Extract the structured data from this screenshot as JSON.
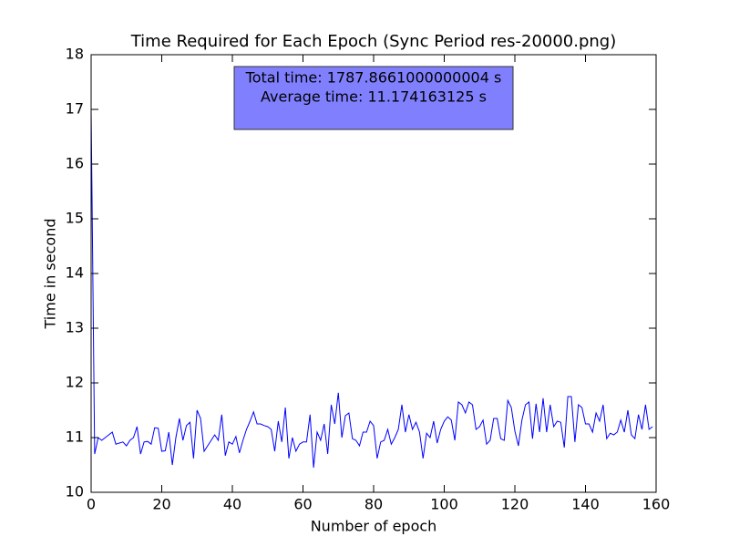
{
  "chart_data": {
    "type": "line",
    "title": "Time Required for Each Epoch (Sync Period res-20000.png)",
    "xlabel": "Number of epoch",
    "ylabel": "Time in second",
    "annotations": [
      "Total time: 1787.8661000000004 s",
      "Average time: 11.174163125 s"
    ],
    "annotation_color": "#8080ff",
    "color": "#0000ff",
    "xlim": [
      0,
      160
    ],
    "xticks": [
      0,
      20,
      40,
      60,
      80,
      100,
      120,
      140,
      160
    ],
    "ylim": [
      10,
      18
    ],
    "yticks": [
      10,
      11,
      12,
      13,
      14,
      15,
      16,
      17,
      18
    ],
    "x": [
      0,
      1,
      2,
      3,
      4,
      5,
      6,
      7,
      8,
      9,
      10,
      11,
      12,
      13,
      14,
      15,
      16,
      17,
      18,
      19,
      20,
      21,
      22,
      23,
      24,
      25,
      26,
      27,
      28,
      29,
      30,
      31,
      32,
      33,
      34,
      35,
      36,
      37,
      38,
      39,
      40,
      41,
      42,
      43,
      44,
      45,
      46,
      47,
      48,
      49,
      50,
      51,
      52,
      53,
      54,
      55,
      56,
      57,
      58,
      59,
      60,
      61,
      62,
      63,
      64,
      65,
      66,
      67,
      68,
      69,
      70,
      71,
      72,
      73,
      74,
      75,
      76,
      77,
      78,
      79,
      80,
      81,
      82,
      83,
      84,
      85,
      86,
      87,
      88,
      89,
      90,
      91,
      92,
      93,
      94,
      95,
      96,
      97,
      98,
      99,
      100,
      101,
      102,
      103,
      104,
      105,
      106,
      107,
      108,
      109,
      110,
      111,
      112,
      113,
      114,
      115,
      116,
      117,
      118,
      119,
      120,
      121,
      122,
      123,
      124,
      125,
      126,
      127,
      128,
      129,
      130,
      131,
      132,
      133,
      134,
      135,
      136,
      137,
      138,
      139,
      140,
      141,
      142,
      143,
      144,
      145,
      146,
      147,
      148,
      149,
      150,
      151,
      152,
      153,
      154,
      155,
      156,
      157,
      158,
      159
    ],
    "values": [
      17.0,
      10.7,
      11.0,
      10.95,
      11.0,
      11.05,
      11.1,
      10.88,
      10.9,
      10.92,
      10.85,
      10.95,
      11.0,
      11.2,
      10.7,
      10.92,
      10.93,
      10.88,
      11.18,
      11.17,
      10.75,
      10.76,
      11.1,
      10.5,
      11.0,
      11.35,
      10.95,
      11.22,
      11.28,
      10.62,
      11.5,
      11.35,
      10.75,
      10.85,
      10.95,
      11.05,
      10.95,
      11.42,
      10.67,
      10.92,
      10.88,
      11.02,
      10.72,
      10.95,
      11.15,
      11.3,
      11.47,
      11.25,
      11.25,
      11.22,
      11.2,
      11.15,
      10.75,
      11.3,
      10.92,
      11.55,
      10.62,
      11.0,
      10.75,
      10.88,
      10.92,
      10.92,
      11.42,
      10.45,
      11.1,
      10.95,
      11.25,
      10.7,
      11.6,
      11.25,
      11.82,
      11.0,
      11.4,
      11.45,
      10.98,
      10.95,
      10.85,
      11.1,
      11.1,
      11.3,
      11.22,
      10.62,
      10.92,
      10.95,
      11.15,
      10.88,
      11.0,
      11.15,
      11.6,
      11.1,
      11.42,
      11.15,
      11.28,
      11.1,
      10.62,
      11.08,
      11.0,
      11.3,
      10.9,
      11.15,
      11.3,
      11.38,
      11.32,
      10.95,
      11.65,
      11.6,
      11.45,
      11.65,
      11.6,
      11.15,
      11.2,
      11.32,
      10.88,
      10.95,
      11.35,
      11.35,
      10.98,
      10.95,
      11.68,
      11.55,
      11.12,
      10.85,
      11.32,
      11.6,
      11.65,
      10.98,
      11.62,
      11.1,
      11.72,
      11.1,
      11.6,
      11.2,
      11.3,
      11.28,
      10.82,
      11.75,
      11.75,
      10.92,
      11.6,
      11.55,
      11.25,
      11.25,
      11.1,
      11.45,
      11.3,
      11.6,
      10.98,
      11.08,
      11.05,
      11.1,
      11.32,
      11.1,
      11.5,
      11.05,
      10.98,
      11.42,
      11.15,
      11.6,
      11.15,
      11.2
    ]
  }
}
